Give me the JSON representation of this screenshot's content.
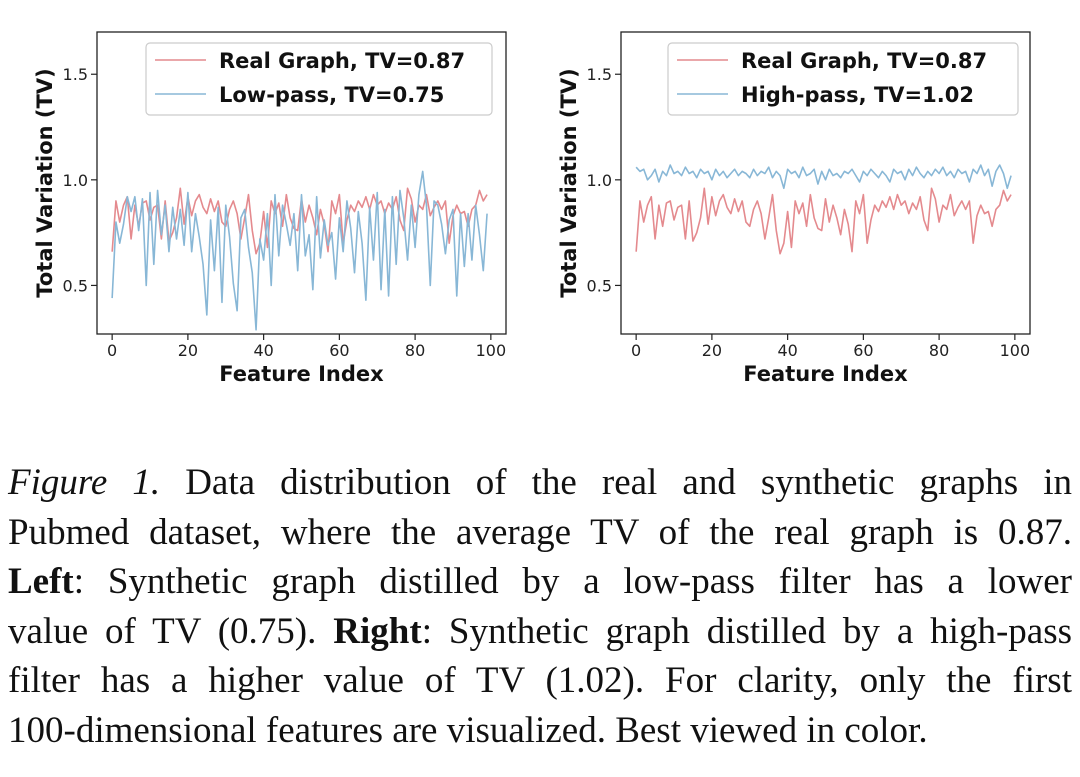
{
  "chart_data": [
    {
      "type": "line",
      "xlabel": "Feature Index",
      "ylabel": "Total Variation (TV)",
      "xlim": [
        -4,
        104
      ],
      "ylim": [
        0.27,
        1.7
      ],
      "xticks": [
        0,
        20,
        40,
        60,
        80,
        100
      ],
      "yticks": [
        0.5,
        1.0,
        1.5
      ],
      "xtick_labels": [
        "0",
        "20",
        "40",
        "60",
        "80",
        "100"
      ],
      "ytick_labels": [
        "0.5",
        "1.0",
        "1.5"
      ],
      "legend_position": "top-right",
      "series": [
        {
          "name": "Real Graph, TV=0.87",
          "color": "#e48a8e",
          "values": [
            0.66,
            0.9,
            0.8,
            0.88,
            0.92,
            0.72,
            0.88,
            0.78,
            0.89,
            0.9,
            0.81,
            0.87,
            0.88,
            0.72,
            0.9,
            0.71,
            0.75,
            0.82,
            0.96,
            0.79,
            0.92,
            0.83,
            0.9,
            0.93,
            0.87,
            0.84,
            0.91,
            0.85,
            0.9,
            0.8,
            0.78,
            0.86,
            0.9,
            0.84,
            0.72,
            0.82,
            0.93,
            0.76,
            0.65,
            0.7,
            0.85,
            0.68,
            0.9,
            0.84,
            0.89,
            0.78,
            0.93,
            0.82,
            0.77,
            0.76,
            0.91,
            0.8,
            0.88,
            0.82,
            0.74,
            0.86,
            0.79,
            0.66,
            0.9,
            0.84,
            0.93,
            0.7,
            0.81,
            0.88,
            0.85,
            0.9,
            0.87,
            0.92,
            0.86,
            0.93,
            0.88,
            0.9,
            0.84,
            0.89,
            0.86,
            0.92,
            0.81,
            0.76,
            0.96,
            0.91,
            0.8,
            0.88,
            0.86,
            0.93,
            0.83,
            0.87,
            0.9,
            0.86,
            0.9,
            0.7,
            0.83,
            0.88,
            0.84,
            0.85,
            0.78,
            0.86,
            0.88,
            0.95,
            0.9,
            0.93
          ]
        },
        {
          "name": "Low-pass, TV=0.75",
          "color": "#88b7d6",
          "values": [
            0.44,
            0.8,
            0.7,
            0.79,
            0.92,
            0.85,
            0.92,
            0.76,
            0.91,
            0.5,
            0.94,
            0.6,
            0.95,
            0.74,
            0.88,
            0.66,
            0.87,
            0.72,
            0.86,
            0.69,
            0.94,
            0.66,
            0.84,
            0.73,
            0.6,
            0.36,
            0.81,
            0.57,
            0.87,
            0.42,
            0.88,
            0.73,
            0.51,
            0.38,
            0.82,
            0.86,
            0.68,
            0.56,
            0.29,
            0.72,
            0.62,
            0.84,
            0.5,
            0.93,
            0.64,
            0.88,
            0.79,
            0.69,
            0.84,
            0.57,
            0.93,
            0.64,
            0.74,
            0.48,
            0.92,
            0.63,
            0.81,
            0.69,
            0.75,
            0.53,
            0.82,
            0.66,
            0.9,
            0.77,
            0.56,
            0.85,
            0.7,
            0.43,
            0.87,
            0.62,
            0.94,
            0.48,
            0.86,
            0.45,
            0.92,
            0.6,
            0.95,
            0.82,
            0.62,
            0.88,
            0.68,
            0.93,
            1.04,
            0.88,
            0.5,
            0.9,
            0.88,
            0.79,
            0.65,
            0.81,
            0.86,
            0.45,
            0.84,
            0.59,
            0.84,
            0.62,
            0.88,
            0.74,
            0.57,
            0.84
          ]
        }
      ]
    },
    {
      "type": "line",
      "xlabel": "Feature Index",
      "ylabel": "Total Variation (TV)",
      "xlim": [
        -4,
        104
      ],
      "ylim": [
        0.27,
        1.7
      ],
      "xticks": [
        0,
        20,
        40,
        60,
        80,
        100
      ],
      "yticks": [
        0.5,
        1.0,
        1.5
      ],
      "xtick_labels": [
        "0",
        "20",
        "40",
        "60",
        "80",
        "100"
      ],
      "ytick_labels": [
        "0.5",
        "1.0",
        "1.5"
      ],
      "legend_position": "top-right",
      "series": [
        {
          "name": "Real Graph, TV=0.87",
          "color": "#e48a8e",
          "values": [
            0.66,
            0.9,
            0.8,
            0.88,
            0.92,
            0.72,
            0.88,
            0.78,
            0.89,
            0.9,
            0.81,
            0.87,
            0.88,
            0.72,
            0.9,
            0.71,
            0.75,
            0.82,
            0.96,
            0.79,
            0.92,
            0.83,
            0.9,
            0.93,
            0.87,
            0.84,
            0.91,
            0.85,
            0.9,
            0.8,
            0.78,
            0.86,
            0.9,
            0.84,
            0.72,
            0.82,
            0.93,
            0.76,
            0.65,
            0.7,
            0.85,
            0.68,
            0.9,
            0.84,
            0.89,
            0.78,
            0.93,
            0.82,
            0.77,
            0.76,
            0.91,
            0.8,
            0.88,
            0.82,
            0.74,
            0.86,
            0.79,
            0.66,
            0.9,
            0.84,
            0.93,
            0.7,
            0.81,
            0.88,
            0.85,
            0.9,
            0.87,
            0.92,
            0.86,
            0.93,
            0.88,
            0.9,
            0.84,
            0.89,
            0.86,
            0.92,
            0.81,
            0.76,
            0.96,
            0.91,
            0.8,
            0.88,
            0.86,
            0.93,
            0.83,
            0.87,
            0.9,
            0.86,
            0.9,
            0.7,
            0.83,
            0.88,
            0.84,
            0.85,
            0.78,
            0.86,
            0.88,
            0.95,
            0.9,
            0.93
          ]
        },
        {
          "name": "High-pass, TV=1.02",
          "color": "#88b7d6",
          "values": [
            1.06,
            1.04,
            1.05,
            1.0,
            1.02,
            1.05,
            0.99,
            1.04,
            1.02,
            1.07,
            1.03,
            1.04,
            1.02,
            1.06,
            1.03,
            1.04,
            1.01,
            1.05,
            1.03,
            1.04,
            1.0,
            1.05,
            1.02,
            1.04,
            1.01,
            1.03,
            1.05,
            1.02,
            1.04,
            1.03,
            1.01,
            1.05,
            1.02,
            1.04,
            1.03,
            1.06,
            1.01,
            1.04,
            1.02,
            0.96,
            1.05,
            1.03,
            1.04,
            1.01,
            1.06,
            1.02,
            1.03,
            1.05,
            0.98,
            1.04,
            1.0,
            1.05,
            1.02,
            1.03,
            1.01,
            1.04,
            1.03,
            1.05,
            1.02,
            0.99,
            1.04,
            1.02,
            1.05,
            1.03,
            1.01,
            1.04,
            1.02,
            0.99,
            1.05,
            1.03,
            1.04,
            1.0,
            1.05,
            1.02,
            1.06,
            1.03,
            1.01,
            1.04,
            1.02,
            1.05,
            1.03,
            1.06,
            1.02,
            1.04,
            1.01,
            1.05,
            1.03,
            1.04,
            0.99,
            1.05,
            1.03,
            1.07,
            1.02,
            1.05,
            0.97,
            1.04,
            1.07,
            1.03,
            0.96,
            1.02
          ]
        }
      ]
    }
  ],
  "caption": {
    "lines": [
      {
        "label": "Figure 1.",
        "text": " Data distribution of the real and synthetic graphs in"
      },
      {
        "text": "Pubmed dataset, where the average TV of the real graph is 0.87."
      },
      {
        "bold": "Left",
        "text": ":  Synthetic graph distilled by a low-pass filter has a lower"
      },
      {
        "text": "value of TV (0.75). ",
        "bold2": "Right",
        "text2": ": Synthetic graph distilled by a high-pass"
      },
      {
        "text": "filter has a higher value of TV (1.02).  For clarity, only the first"
      },
      {
        "text": "100-dimensional features are visualized. Best viewed in color."
      }
    ]
  }
}
